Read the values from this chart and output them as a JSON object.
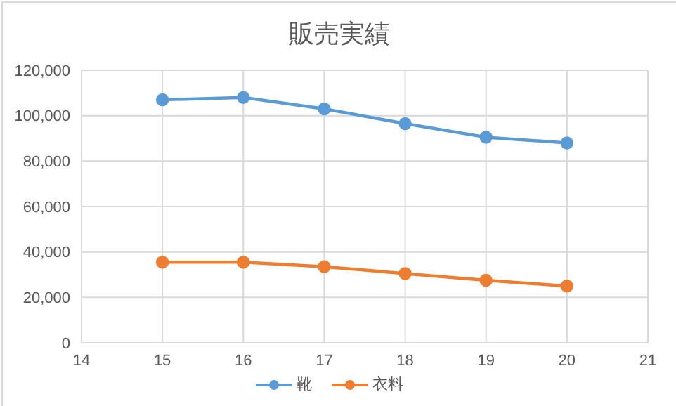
{
  "chart_data": {
    "type": "line",
    "title": "販売実績",
    "x": [
      15,
      16,
      17,
      18,
      19,
      20
    ],
    "series": [
      {
        "name": "靴",
        "color": "#5b9bd5",
        "values": [
          107000,
          108000,
          103000,
          96500,
          90500,
          88000
        ]
      },
      {
        "name": "衣料",
        "color": "#ed7d31",
        "values": [
          35500,
          35500,
          33500,
          30500,
          27500,
          25000
        ]
      }
    ],
    "xlim": [
      14,
      21
    ],
    "xticks": [
      14,
      15,
      16,
      17,
      18,
      19,
      20,
      21
    ],
    "ylim": [
      0,
      120000
    ],
    "yticks": [
      0,
      {
        "value": 20000,
        "label": "20,000"
      },
      {
        "value": 40000,
        "label": "40,000"
      },
      {
        "value": 60000,
        "label": "60,000"
      },
      {
        "value": 80000,
        "label": "80,000"
      },
      {
        "value": 100000,
        "label": "100,000"
      },
      {
        "value": 120000,
        "label": "120,000"
      }
    ],
    "grid": true,
    "legend": "bottom",
    "marker": "circle",
    "line_style": "solid"
  }
}
